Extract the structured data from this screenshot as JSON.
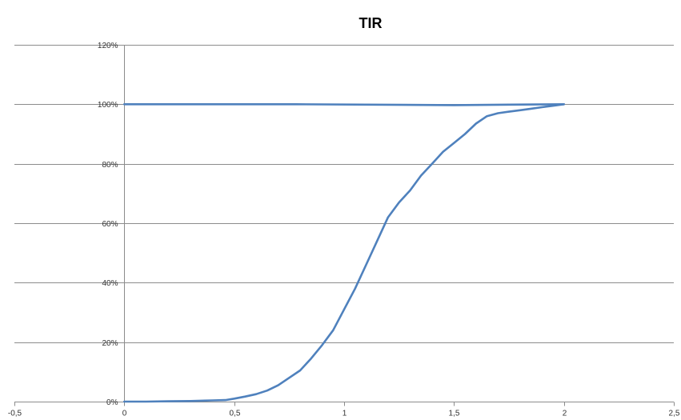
{
  "chart_data": {
    "type": "line",
    "title": "TIR",
    "xlabel": "",
    "ylabel": "",
    "xlim": [
      -0.5,
      2.5
    ],
    "ylim": [
      0,
      1.2
    ],
    "x_ticks": [
      -0.5,
      0,
      0.5,
      1,
      1.5,
      2,
      2.5
    ],
    "x_tick_labels": [
      "-0,5",
      "0",
      "0,5",
      "1",
      "1,5",
      "2",
      "2,5"
    ],
    "y_ticks": [
      0,
      0.2,
      0.4,
      0.6,
      0.8,
      1.0,
      1.2
    ],
    "y_tick_labels": [
      "0%",
      "20%",
      "40%",
      "60%",
      "80%",
      "100%",
      "120%"
    ],
    "grid": "horizontal",
    "legend": "none",
    "line_color": "#4f81bd",
    "series": [
      {
        "points": [
          [
            0,
            1.0
          ],
          [
            0.78,
            1.0
          ],
          [
            1.5,
            0.997
          ],
          [
            2.0,
            1.0
          ]
        ]
      },
      {
        "points": [
          [
            0,
            0.0
          ],
          [
            0.1,
            0.0
          ],
          [
            0.2,
            0.001
          ],
          [
            0.3,
            0.002
          ],
          [
            0.4,
            0.004
          ],
          [
            0.46,
            0.005
          ],
          [
            0.5,
            0.01
          ],
          [
            0.55,
            0.017
          ],
          [
            0.6,
            0.025
          ],
          [
            0.65,
            0.037
          ],
          [
            0.7,
            0.055
          ],
          [
            0.75,
            0.08
          ],
          [
            0.8,
            0.105
          ],
          [
            0.85,
            0.145
          ],
          [
            0.9,
            0.19
          ],
          [
            0.95,
            0.24
          ],
          [
            1.0,
            0.31
          ],
          [
            1.05,
            0.38
          ],
          [
            1.1,
            0.46
          ],
          [
            1.15,
            0.54
          ],
          [
            1.2,
            0.62
          ],
          [
            1.25,
            0.67
          ],
          [
            1.3,
            0.71
          ],
          [
            1.35,
            0.76
          ],
          [
            1.4,
            0.8
          ],
          [
            1.45,
            0.84
          ],
          [
            1.5,
            0.87
          ],
          [
            1.55,
            0.9
          ],
          [
            1.6,
            0.935
          ],
          [
            1.65,
            0.96
          ],
          [
            1.7,
            0.97
          ],
          [
            1.75,
            0.975
          ],
          [
            1.8,
            0.98
          ],
          [
            1.85,
            0.985
          ],
          [
            1.9,
            0.99
          ],
          [
            1.95,
            0.995
          ],
          [
            2.0,
            1.0
          ]
        ]
      }
    ]
  }
}
